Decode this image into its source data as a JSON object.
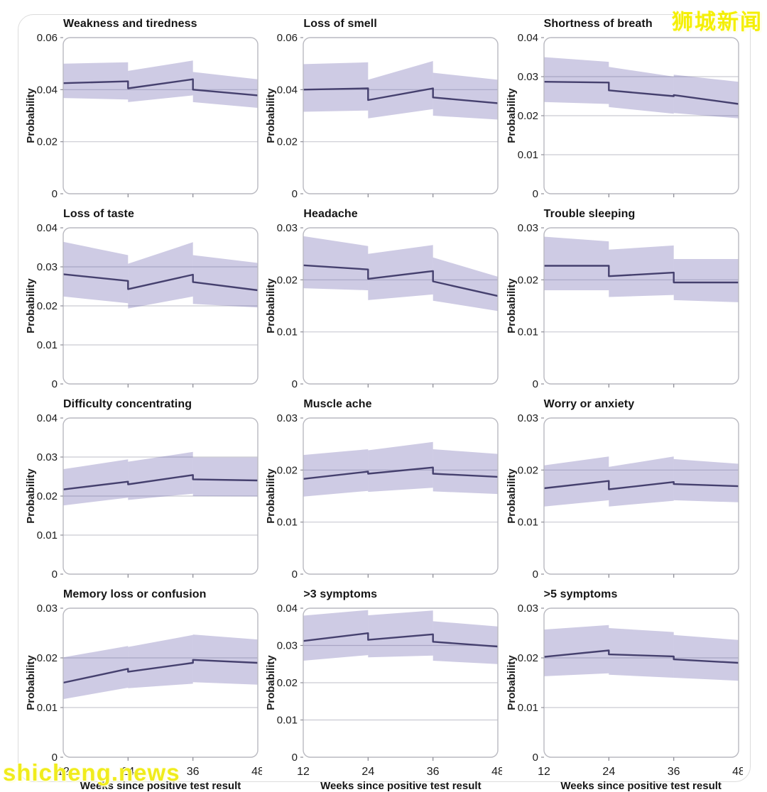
{
  "watermarks": {
    "top_right": "狮城新闻",
    "bottom_left": "shicheng.news"
  },
  "chart_data": {
    "type": "line",
    "x_label": "Weeks since positive test result",
    "y_label": "Probability",
    "xlim": [
      12,
      48
    ],
    "xticks": [
      12,
      24,
      36,
      48
    ],
    "grid": "horizontal",
    "legend": "none",
    "style": {
      "band_fill_rgb": "93,84,164",
      "band_opacity": 0.3,
      "line_color": "#45406e",
      "grid_color": "#c9c9d2",
      "frame_color": "#b9b9c0",
      "tick_color": "#8f8f98",
      "text_color": "#1b1b1b",
      "watermark_color": "#f4ef05"
    },
    "charts": [
      {
        "title": "Weakness and tiredness",
        "ylim": [
          0,
          0.06
        ],
        "yticks": [
          0,
          0.02,
          0.04,
          0.06
        ],
        "segments": [
          {
            "x": [
              12,
              24
            ],
            "line": [
              0.0425,
              0.0432
            ],
            "upper": [
              0.05,
              0.0505
            ],
            "lower": [
              0.0368,
              0.0362
            ]
          },
          {
            "x": [
              24,
              36
            ],
            "line": [
              0.0405,
              0.044
            ],
            "upper": [
              0.0472,
              0.0512
            ],
            "lower": [
              0.0352,
              0.0378
            ]
          },
          {
            "x": [
              36,
              48
            ],
            "line": [
              0.04,
              0.0378
            ],
            "upper": [
              0.0468,
              0.044
            ],
            "lower": [
              0.0352,
              0.033
            ]
          }
        ]
      },
      {
        "title": "Loss of smell",
        "ylim": [
          0,
          0.06
        ],
        "yticks": [
          0,
          0.02,
          0.04,
          0.06
        ],
        "segments": [
          {
            "x": [
              12,
              24
            ],
            "line": [
              0.04,
              0.0405
            ],
            "upper": [
              0.0498,
              0.0505
            ],
            "lower": [
              0.0315,
              0.032
            ]
          },
          {
            "x": [
              24,
              36
            ],
            "line": [
              0.036,
              0.0405
            ],
            "upper": [
              0.0438,
              0.051
            ],
            "lower": [
              0.029,
              0.0325
            ]
          },
          {
            "x": [
              36,
              48
            ],
            "line": [
              0.037,
              0.0348
            ],
            "upper": [
              0.0465,
              0.0438
            ],
            "lower": [
              0.03,
              0.0285
            ]
          }
        ]
      },
      {
        "title": "Shortness of breath",
        "ylim": [
          0,
          0.04
        ],
        "yticks": [
          0,
          0.01,
          0.02,
          0.03,
          0.04
        ],
        "segments": [
          {
            "x": [
              12,
              24
            ],
            "line": [
              0.0287,
              0.0285
            ],
            "upper": [
              0.035,
              0.0338
            ],
            "lower": [
              0.0235,
              0.023
            ]
          },
          {
            "x": [
              24,
              36
            ],
            "line": [
              0.0265,
              0.025
            ],
            "upper": [
              0.0325,
              0.03
            ],
            "lower": [
              0.0222,
              0.0205
            ]
          },
          {
            "x": [
              36,
              48
            ],
            "line": [
              0.0253,
              0.023
            ],
            "upper": [
              0.0305,
              0.0287
            ],
            "lower": [
              0.0207,
              0.0193
            ]
          }
        ]
      },
      {
        "title": "Loss of taste",
        "ylim": [
          0,
          0.04
        ],
        "yticks": [
          0,
          0.01,
          0.02,
          0.03,
          0.04
        ],
        "segments": [
          {
            "x": [
              12,
              24
            ],
            "line": [
              0.0281,
              0.0264
            ],
            "upper": [
              0.0364,
              0.033
            ],
            "lower": [
              0.0224,
              0.0207
            ]
          },
          {
            "x": [
              24,
              36
            ],
            "line": [
              0.0243,
              0.028
            ],
            "upper": [
              0.0308,
              0.0363
            ],
            "lower": [
              0.0193,
              0.0224
            ]
          },
          {
            "x": [
              36,
              48
            ],
            "line": [
              0.0261,
              0.024
            ],
            "upper": [
              0.033,
              0.031
            ],
            "lower": [
              0.0205,
              0.0196
            ]
          }
        ]
      },
      {
        "title": "Headache",
        "ylim": [
          0,
          0.03
        ],
        "yticks": [
          0,
          0.01,
          0.02,
          0.03
        ],
        "segments": [
          {
            "x": [
              12,
              24
            ],
            "line": [
              0.0228,
              0.022
            ],
            "upper": [
              0.0284,
              0.0265
            ],
            "lower": [
              0.0184,
              0.018
            ]
          },
          {
            "x": [
              24,
              36
            ],
            "line": [
              0.0202,
              0.0217
            ],
            "upper": [
              0.025,
              0.0267
            ],
            "lower": [
              0.0161,
              0.0172
            ]
          },
          {
            "x": [
              36,
              48
            ],
            "line": [
              0.0197,
              0.0169
            ],
            "upper": [
              0.0243,
              0.0206
            ],
            "lower": [
              0.016,
              0.014
            ]
          }
        ]
      },
      {
        "title": "Trouble sleeping",
        "ylim": [
          0,
          0.03
        ],
        "yticks": [
          0,
          0.01,
          0.02,
          0.03
        ],
        "segments": [
          {
            "x": [
              12,
              24
            ],
            "line": [
              0.0227,
              0.0227
            ],
            "upper": [
              0.0283,
              0.0274
            ],
            "lower": [
              0.018,
              0.018
            ]
          },
          {
            "x": [
              24,
              36
            ],
            "line": [
              0.0207,
              0.0214
            ],
            "upper": [
              0.0258,
              0.0266
            ],
            "lower": [
              0.0167,
              0.0171
            ]
          },
          {
            "x": [
              36,
              48
            ],
            "line": [
              0.0195,
              0.0195
            ],
            "upper": [
              0.024,
              0.024
            ],
            "lower": [
              0.0161,
              0.0157
            ]
          }
        ]
      },
      {
        "title": "Difficulty concentrating",
        "ylim": [
          0,
          0.04
        ],
        "yticks": [
          0,
          0.01,
          0.02,
          0.03,
          0.04
        ],
        "segments": [
          {
            "x": [
              12,
              24
            ],
            "line": [
              0.0217,
              0.0237
            ],
            "upper": [
              0.0269,
              0.0294
            ],
            "lower": [
              0.0176,
              0.0196
            ]
          },
          {
            "x": [
              24,
              36
            ],
            "line": [
              0.023,
              0.0254
            ],
            "upper": [
              0.0288,
              0.0313
            ],
            "lower": [
              0.019,
              0.0206
            ]
          },
          {
            "x": [
              36,
              48
            ],
            "line": [
              0.0243,
              0.024
            ],
            "upper": [
              0.0299,
              0.0299
            ],
            "lower": [
              0.02,
              0.0199
            ]
          }
        ]
      },
      {
        "title": "Muscle ache",
        "ylim": [
          0,
          0.03
        ],
        "yticks": [
          0,
          0.01,
          0.02,
          0.03
        ],
        "segments": [
          {
            "x": [
              12,
              24
            ],
            "line": [
              0.0183,
              0.0197
            ],
            "upper": [
              0.0229,
              0.024
            ],
            "lower": [
              0.0149,
              0.016
            ]
          },
          {
            "x": [
              24,
              36
            ],
            "line": [
              0.0193,
              0.0205
            ],
            "upper": [
              0.0238,
              0.0254
            ],
            "lower": [
              0.0158,
              0.0166
            ]
          },
          {
            "x": [
              36,
              48
            ],
            "line": [
              0.0193,
              0.0187
            ],
            "upper": [
              0.024,
              0.0231
            ],
            "lower": [
              0.0159,
              0.0154
            ]
          }
        ]
      },
      {
        "title": "Worry or anxiety",
        "ylim": [
          0,
          0.03
        ],
        "yticks": [
          0,
          0.01,
          0.02,
          0.03
        ],
        "segments": [
          {
            "x": [
              12,
              24
            ],
            "line": [
              0.0165,
              0.0179
            ],
            "upper": [
              0.0209,
              0.0226
            ],
            "lower": [
              0.013,
              0.0142
            ]
          },
          {
            "x": [
              24,
              36
            ],
            "line": [
              0.0163,
              0.0177
            ],
            "upper": [
              0.0206,
              0.0226
            ],
            "lower": [
              0.013,
              0.0141
            ]
          },
          {
            "x": [
              36,
              48
            ],
            "line": [
              0.0173,
              0.0169
            ],
            "upper": [
              0.0221,
              0.0212
            ],
            "lower": [
              0.0142,
              0.0138
            ]
          }
        ]
      },
      {
        "title": "Memory loss or confusion",
        "ylim": [
          0,
          0.03
        ],
        "yticks": [
          0,
          0.01,
          0.02,
          0.03
        ],
        "segments": [
          {
            "x": [
              12,
              24
            ],
            "line": [
              0.015,
              0.0178
            ],
            "upper": [
              0.0201,
              0.0224
            ],
            "lower": [
              0.0117,
              0.014
            ]
          },
          {
            "x": [
              24,
              36
            ],
            "line": [
              0.0172,
              0.019
            ],
            "upper": [
              0.0222,
              0.0246
            ],
            "lower": [
              0.0139,
              0.0148
            ]
          },
          {
            "x": [
              36,
              48
            ],
            "line": [
              0.0196,
              0.019
            ],
            "upper": [
              0.0247,
              0.0237
            ],
            "lower": [
              0.0151,
              0.0146
            ]
          }
        ]
      },
      {
        "title": ">3 symptoms",
        "ylim": [
          0,
          0.04
        ],
        "yticks": [
          0,
          0.01,
          0.02,
          0.03,
          0.04
        ],
        "segments": [
          {
            "x": [
              12,
              24
            ],
            "line": [
              0.0312,
              0.0333
            ],
            "upper": [
              0.038,
              0.0395
            ],
            "lower": [
              0.0259,
              0.0274
            ]
          },
          {
            "x": [
              24,
              36
            ],
            "line": [
              0.0315,
              0.033
            ],
            "upper": [
              0.0381,
              0.0394
            ],
            "lower": [
              0.0268,
              0.0273
            ]
          },
          {
            "x": [
              36,
              48
            ],
            "line": [
              0.031,
              0.0297
            ],
            "upper": [
              0.0365,
              0.0351
            ],
            "lower": [
              0.0259,
              0.025
            ]
          }
        ]
      },
      {
        "title": ">5 symptoms",
        "ylim": [
          0,
          0.03
        ],
        "yticks": [
          0,
          0.01,
          0.02,
          0.03
        ],
        "segments": [
          {
            "x": [
              12,
              24
            ],
            "line": [
              0.0202,
              0.0215
            ],
            "upper": [
              0.0257,
              0.0266
            ],
            "lower": [
              0.0163,
              0.0169
            ]
          },
          {
            "x": [
              24,
              36
            ],
            "line": [
              0.0207,
              0.0203
            ],
            "upper": [
              0.026,
              0.0252
            ],
            "lower": [
              0.0166,
              0.016
            ]
          },
          {
            "x": [
              36,
              48
            ],
            "line": [
              0.0197,
              0.019
            ],
            "upper": [
              0.0246,
              0.0236
            ],
            "lower": [
              0.016,
              0.0154
            ]
          }
        ]
      }
    ]
  }
}
